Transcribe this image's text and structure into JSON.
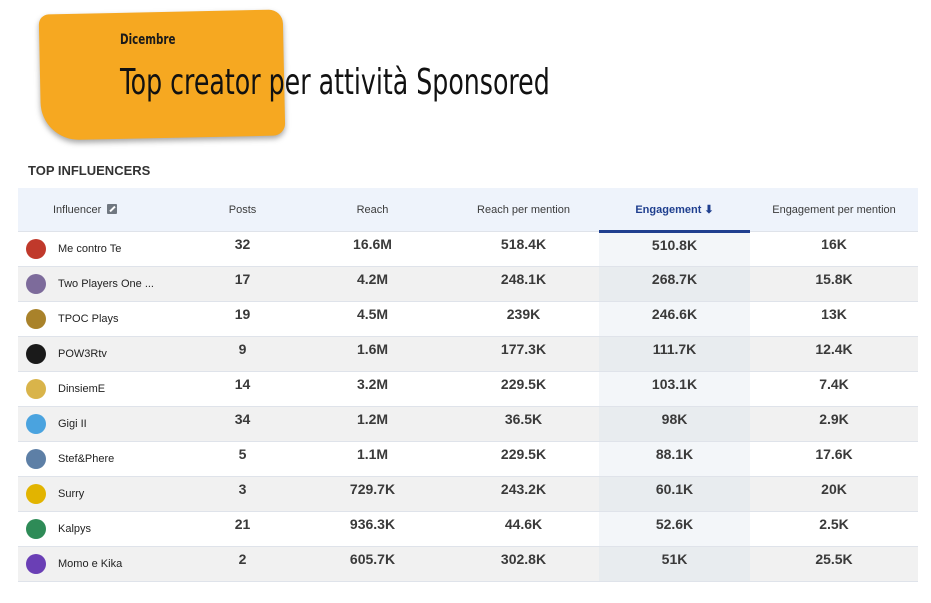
{
  "header": {
    "month": "Dicembre",
    "title": "Top creator per attività Sponsored"
  },
  "section": {
    "label": "TOP INFLUENCERS"
  },
  "table": {
    "columns": {
      "influencer": "Influencer",
      "posts": "Posts",
      "reach": "Reach",
      "reach_per_mention": "Reach per mention",
      "engagement": "Engagement",
      "engagement_per_mention": "Engagement per mention"
    },
    "sort_arrow": "⬇",
    "rows": [
      {
        "name": "Me contro Te",
        "posts": "32",
        "reach": "16.6M",
        "reach_per_mention": "518.4K",
        "engagement": "510.8K",
        "engagement_per_mention": "16K",
        "avatar_color": "#c0392b"
      },
      {
        "name": "Two Players One ...",
        "posts": "17",
        "reach": "4.2M",
        "reach_per_mention": "248.1K",
        "engagement": "268.7K",
        "engagement_per_mention": "15.8K",
        "avatar_color": "#7d6b9b"
      },
      {
        "name": "TPOC Plays",
        "posts": "19",
        "reach": "4.5M",
        "reach_per_mention": "239K",
        "engagement": "246.6K",
        "engagement_per_mention": "13K",
        "avatar_color": "#a9822a"
      },
      {
        "name": "POW3Rtv",
        "posts": "9",
        "reach": "1.6M",
        "reach_per_mention": "177.3K",
        "engagement": "111.7K",
        "engagement_per_mention": "12.4K",
        "avatar_color": "#1a1a1a"
      },
      {
        "name": "DinsiemE",
        "posts": "14",
        "reach": "3.2M",
        "reach_per_mention": "229.5K",
        "engagement": "103.1K",
        "engagement_per_mention": "7.4K",
        "avatar_color": "#d9b44a"
      },
      {
        "name": "Gigi II",
        "posts": "34",
        "reach": "1.2M",
        "reach_per_mention": "36.5K",
        "engagement": "98K",
        "engagement_per_mention": "2.9K",
        "avatar_color": "#4aa3df"
      },
      {
        "name": "Stef&Phere",
        "posts": "5",
        "reach": "1.1M",
        "reach_per_mention": "229.5K",
        "engagement": "88.1K",
        "engagement_per_mention": "17.6K",
        "avatar_color": "#5d7fa6"
      },
      {
        "name": "Surry",
        "posts": "3",
        "reach": "729.7K",
        "reach_per_mention": "243.2K",
        "engagement": "60.1K",
        "engagement_per_mention": "20K",
        "avatar_color": "#e2b400"
      },
      {
        "name": "Kalpys",
        "posts": "21",
        "reach": "936.3K",
        "reach_per_mention": "44.6K",
        "engagement": "52.6K",
        "engagement_per_mention": "2.5K",
        "avatar_color": "#2e8b57"
      },
      {
        "name": "Momo e Kika",
        "posts": "2",
        "reach": "605.7K",
        "reach_per_mention": "302.8K",
        "engagement": "51K",
        "engagement_per_mention": "25.5K",
        "avatar_color": "#6a3fb5"
      }
    ]
  }
}
